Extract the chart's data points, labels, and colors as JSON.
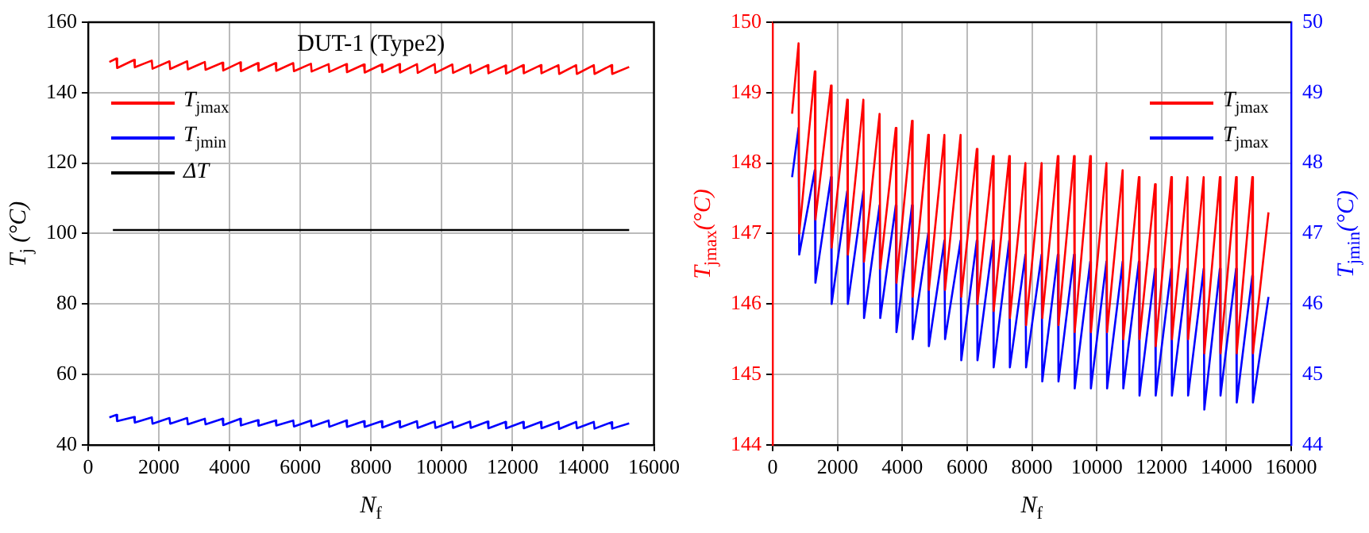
{
  "chart_data": [
    {
      "type": "line",
      "title": "DUT-1 (Type2)",
      "xlabel": "N$_{f}$",
      "ylabel": "T$_{j}$ (°C)",
      "xlim": [
        0,
        16000
      ],
      "xticks": [
        0,
        2000,
        4000,
        6000,
        8000,
        10000,
        12000,
        14000,
        16000
      ],
      "ylim": [
        40,
        160
      ],
      "yticks": [
        40,
        60,
        80,
        100,
        120,
        140,
        160
      ],
      "grid": true,
      "legend": "top left",
      "series": [
        {
          "name": "T$_{jmax}$",
          "color": "#ff0000",
          "x": [
            600,
            800,
            820,
            1300,
            1320,
            1800,
            1820,
            2300,
            2320,
            2800,
            2820,
            3300,
            3320,
            3800,
            3820,
            4300,
            4320,
            4800,
            4820,
            5300,
            5320,
            5800,
            5820,
            6300,
            6320,
            6800,
            6820,
            7300,
            7320,
            7800,
            7820,
            8300,
            8320,
            8800,
            8820,
            9300,
            9320,
            9800,
            9820,
            10300,
            10320,
            10800,
            10820,
            11300,
            11320,
            11800,
            11820,
            12300,
            12320,
            12800,
            12820,
            13300,
            13320,
            13800,
            13820,
            14300,
            14320,
            14800,
            14820,
            15300
          ],
          "values": [
            148.7,
            149.7,
            147.0,
            149.3,
            147.2,
            149.1,
            146.8,
            148.9,
            146.7,
            148.9,
            146.6,
            148.7,
            146.5,
            148.5,
            146.3,
            148.6,
            146.1,
            148.4,
            146.2,
            148.4,
            146.2,
            148.4,
            146.1,
            148.2,
            146.0,
            148.1,
            145.9,
            148.1,
            145.8,
            148.0,
            145.7,
            148.0,
            145.8,
            148.1,
            145.7,
            148.1,
            145.6,
            148.1,
            145.6,
            148.0,
            145.6,
            147.9,
            145.5,
            147.8,
            145.5,
            147.7,
            145.4,
            147.8,
            145.5,
            147.8,
            145.5,
            147.8,
            145.3,
            147.8,
            145.3,
            147.8,
            145.3,
            147.8,
            145.3,
            147.3
          ]
        },
        {
          "name": "T$_{jmin}$",
          "color": "#0000ff",
          "x": [
            600,
            800,
            820,
            1300,
            1320,
            1800,
            1820,
            2300,
            2320,
            2800,
            2820,
            3300,
            3320,
            3800,
            3820,
            4300,
            4320,
            4800,
            4820,
            5300,
            5320,
            5800,
            5820,
            6300,
            6320,
            6800,
            6820,
            7300,
            7320,
            7800,
            7820,
            8300,
            8320,
            8800,
            8820,
            9300,
            9320,
            9800,
            9820,
            10300,
            10320,
            10800,
            10820,
            11300,
            11320,
            11800,
            11820,
            12300,
            12320,
            12800,
            12820,
            13300,
            13320,
            13800,
            13820,
            14300,
            14320,
            14800,
            14820,
            15300
          ],
          "values": [
            47.8,
            48.5,
            46.7,
            47.9,
            46.3,
            47.8,
            46.0,
            47.6,
            46.0,
            47.6,
            45.8,
            47.4,
            45.8,
            47.4,
            45.6,
            47.4,
            45.5,
            47.0,
            45.4,
            46.9,
            45.5,
            46.9,
            45.2,
            46.9,
            45.2,
            46.9,
            45.1,
            46.9,
            45.1,
            46.7,
            45.1,
            46.7,
            44.9,
            46.7,
            44.9,
            46.7,
            44.8,
            46.6,
            44.8,
            46.6,
            44.8,
            46.6,
            44.8,
            46.6,
            44.7,
            46.5,
            44.7,
            46.5,
            44.7,
            46.5,
            44.7,
            46.5,
            44.5,
            46.5,
            44.7,
            46.5,
            44.6,
            46.4,
            44.6,
            46.1
          ]
        },
        {
          "name": "ΔT",
          "color": "#000000",
          "x": [
            700,
            4000,
            8000,
            12000,
            15300
          ],
          "values": [
            101,
            101,
            101,
            101,
            101
          ]
        }
      ]
    },
    {
      "type": "line",
      "xlabel": "N$_{f}$",
      "ylabel": "T$_{jmax}$(°C)",
      "y2label": "T$_{jmin}$(°C)",
      "xlim": [
        0,
        16000
      ],
      "xticks": [
        0,
        2000,
        4000,
        6000,
        8000,
        10000,
        12000,
        14000,
        16000
      ],
      "ylim": [
        144,
        150
      ],
      "yticks": [
        144,
        145,
        146,
        147,
        148,
        149,
        150
      ],
      "y2lim": [
        44,
        50
      ],
      "y2ticks": [
        44,
        45,
        46,
        47,
        48,
        49,
        50
      ],
      "grid": true,
      "legend": "top right",
      "series": [
        {
          "name": "T$_{jmax}$",
          "color": "#ff0000",
          "x": [
            600,
            800,
            820,
            1300,
            1320,
            1800,
            1820,
            2300,
            2320,
            2800,
            2820,
            3300,
            3320,
            3800,
            3820,
            4300,
            4320,
            4800,
            4820,
            5300,
            5320,
            5800,
            5820,
            6300,
            6320,
            6800,
            6820,
            7300,
            7320,
            7800,
            7820,
            8300,
            8320,
            8800,
            8820,
            9300,
            9320,
            9800,
            9820,
            10300,
            10320,
            10800,
            10820,
            11300,
            11320,
            11800,
            11820,
            12300,
            12320,
            12800,
            12820,
            13300,
            13320,
            13800,
            13820,
            14300,
            14320,
            14800,
            14820,
            15300
          ],
          "values": [
            148.7,
            149.7,
            147.0,
            149.3,
            147.2,
            149.1,
            146.8,
            148.9,
            146.7,
            148.9,
            146.6,
            148.7,
            146.5,
            148.5,
            146.3,
            148.6,
            146.1,
            148.4,
            146.2,
            148.4,
            146.2,
            148.4,
            146.1,
            148.2,
            146.0,
            148.1,
            145.9,
            148.1,
            145.8,
            148.0,
            145.7,
            148.0,
            145.8,
            148.1,
            145.7,
            148.1,
            145.6,
            148.1,
            145.6,
            148.0,
            145.6,
            147.9,
            145.5,
            147.8,
            145.5,
            147.7,
            145.4,
            147.8,
            145.5,
            147.8,
            145.5,
            147.8,
            145.3,
            147.8,
            145.3,
            147.8,
            145.3,
            147.8,
            145.3,
            147.3
          ]
        },
        {
          "name": "T$_{jmax}$",
          "color": "#0000ff",
          "axis": "y2",
          "x": [
            600,
            800,
            820,
            1300,
            1320,
            1800,
            1820,
            2300,
            2320,
            2800,
            2820,
            3300,
            3320,
            3800,
            3820,
            4300,
            4320,
            4800,
            4820,
            5300,
            5320,
            5800,
            5820,
            6300,
            6320,
            6800,
            6820,
            7300,
            7320,
            7800,
            7820,
            8300,
            8320,
            8800,
            8820,
            9300,
            9320,
            9800,
            9820,
            10300,
            10320,
            10800,
            10820,
            11300,
            11320,
            11800,
            11820,
            12300,
            12320,
            12800,
            12820,
            13300,
            13320,
            13800,
            13820,
            14300,
            14320,
            14800,
            14820,
            15300
          ],
          "values": [
            47.8,
            48.5,
            46.7,
            47.9,
            46.3,
            47.8,
            46.0,
            47.6,
            46.0,
            47.6,
            45.8,
            47.4,
            45.8,
            47.4,
            45.6,
            47.4,
            45.5,
            47.0,
            45.4,
            46.9,
            45.5,
            46.9,
            45.2,
            46.9,
            45.2,
            46.9,
            45.1,
            46.9,
            45.1,
            46.7,
            45.1,
            46.7,
            44.9,
            46.7,
            44.9,
            46.7,
            44.8,
            46.6,
            44.8,
            46.6,
            44.8,
            46.6,
            44.8,
            46.6,
            44.7,
            46.5,
            44.7,
            46.5,
            44.7,
            46.5,
            44.7,
            46.5,
            44.5,
            46.5,
            44.7,
            46.5,
            44.6,
            46.4,
            44.6,
            46.1
          ]
        }
      ]
    }
  ]
}
